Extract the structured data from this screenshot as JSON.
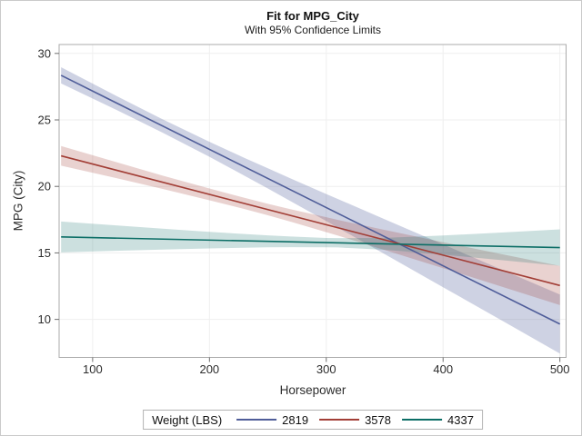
{
  "chart_data": {
    "type": "line",
    "title": "Fit for MPG_City",
    "subtitle": "With 95% Confidence Limits",
    "xlabel": "Horsepower",
    "ylabel": "MPG (City)",
    "xlim": [
      71.3,
      505.3
    ],
    "ylim": [
      7.14,
      30.67
    ],
    "xticks": [
      100,
      200,
      300,
      400,
      500
    ],
    "yticks": [
      10,
      15,
      20,
      25,
      30
    ],
    "grid": true,
    "legend": {
      "title": "Weight (LBS)",
      "position": "bottom"
    },
    "style": {
      "frame_color": "#ababab",
      "tick_color": "#6e6e6e",
      "grid_color": "#efefef",
      "text_color": "#2d2d2d",
      "tick_font_px": 13
    },
    "series": [
      {
        "name": "2819",
        "color": "#4f5d99",
        "band_opacity": 0.28,
        "line": {
          "x": [
            73,
            500
          ],
          "y": [
            28.35,
            9.65
          ]
        },
        "band": {
          "x": [
            73,
            120,
            160,
            200,
            230,
            250,
            270,
            300,
            310,
            350,
            400,
            450,
            500
          ],
          "upper": [
            28.96,
            26.82,
            25.04,
            23.35,
            22.14,
            21.36,
            20.58,
            19.43,
            19.05,
            17.53,
            15.64,
            13.75,
            11.87
          ],
          "lower": [
            27.74,
            25.77,
            24.04,
            22.23,
            20.8,
            19.84,
            18.86,
            17.39,
            16.89,
            14.91,
            12.42,
            9.93,
            7.43
          ]
        }
      },
      {
        "name": "3578",
        "color": "#a23e36",
        "band_opacity": 0.23,
        "line": {
          "x": [
            73,
            500
          ],
          "y": [
            22.3,
            12.55
          ]
        },
        "band": {
          "x": [
            73,
            120,
            160,
            200,
            230,
            250,
            270,
            300,
            310,
            350,
            400,
            450,
            500
          ],
          "upper": [
            23.04,
            21.83,
            20.81,
            19.84,
            19.14,
            18.69,
            18.27,
            17.68,
            17.48,
            16.73,
            15.81,
            14.91,
            14.02
          ],
          "lower": [
            21.56,
            20.63,
            19.81,
            18.96,
            18.3,
            17.83,
            17.33,
            16.56,
            16.3,
            15.22,
            13.85,
            12.47,
            11.08
          ]
        }
      },
      {
        "name": "4337",
        "color": "#0c6e66",
        "band_opacity": 0.21,
        "line": {
          "x": [
            73,
            500
          ],
          "y": [
            16.2,
            15.4
          ]
        },
        "band": {
          "x": [
            73,
            120,
            160,
            200,
            230,
            250,
            270,
            300,
            310,
            350,
            400,
            450,
            500
          ],
          "upper": [
            17.36,
            17.07,
            16.82,
            16.58,
            16.42,
            16.32,
            16.23,
            16.12,
            16.11,
            16.13,
            16.31,
            16.53,
            16.77
          ],
          "lower": [
            15.04,
            15.16,
            15.25,
            15.34,
            15.39,
            15.42,
            15.43,
            15.42,
            15.41,
            15.23,
            14.87,
            14.46,
            14.03
          ]
        }
      }
    ]
  }
}
